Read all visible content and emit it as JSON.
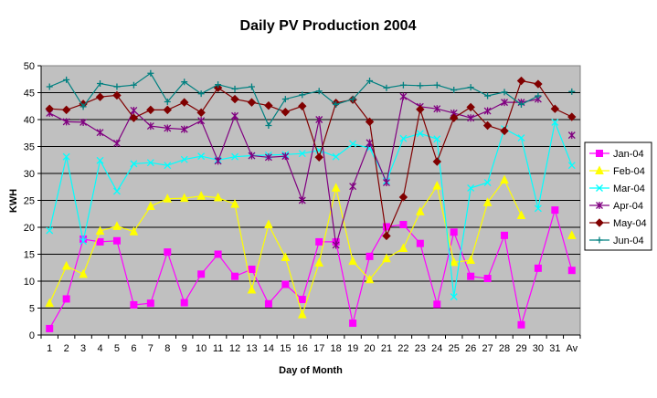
{
  "chart_data": {
    "type": "line",
    "title": "Daily PV Production 2004",
    "xlabel": "Day of Month",
    "ylabel": "KWH",
    "ylim": [
      0,
      50
    ],
    "yticks": [
      0,
      5,
      10,
      15,
      20,
      25,
      30,
      35,
      40,
      45,
      50
    ],
    "grid": true,
    "legend_position": "right",
    "plot_background": "#c0c0c0",
    "categories": [
      "1",
      "2",
      "3",
      "4",
      "5",
      "6",
      "7",
      "8",
      "9",
      "10",
      "11",
      "12",
      "13",
      "14",
      "15",
      "16",
      "17",
      "18",
      "19",
      "20",
      "21",
      "22",
      "23",
      "24",
      "25",
      "26",
      "27",
      "28",
      "29",
      "30",
      "31",
      "Av"
    ],
    "series": [
      {
        "name": "Jan-04",
        "color": "#ff00ff",
        "marker": "square",
        "values": [
          1.2,
          6.7,
          17.8,
          17.3,
          17.5,
          5.6,
          5.9,
          15.4,
          6,
          11.3,
          15,
          10.9,
          12.2,
          5.8,
          9.4,
          6.6,
          17.3,
          17.3,
          2.2,
          14.6,
          20.1,
          20.5,
          17,
          5.7,
          19.1,
          10.9,
          10.5,
          18.5,
          1.9,
          12.4,
          23.2,
          12
        ]
      },
      {
        "name": "Feb-04",
        "color": "#ffff00",
        "marker": "triangle",
        "values": [
          5.9,
          12.8,
          11.3,
          19.3,
          20.2,
          19.2,
          23.9,
          25.3,
          25.4,
          25.8,
          25.5,
          24.3,
          8.4,
          20.5,
          14.4,
          3.8,
          13.4,
          27.3,
          13.7,
          10.3,
          14.2,
          16.1,
          22.9,
          27.7,
          13.5,
          13.9,
          24.6,
          28.8,
          22.2,
          null,
          null,
          18.5
        ]
      },
      {
        "name": "Mar-04",
        "color": "#00ffff",
        "marker": "x",
        "values": [
          19.4,
          33.1,
          17.4,
          32.4,
          26.7,
          31.8,
          32,
          31.5,
          32.6,
          33.2,
          32.5,
          33.1,
          33.3,
          33.4,
          33.5,
          33.7,
          34.3,
          33.1,
          35.5,
          34.7,
          28.6,
          36.5,
          37.4,
          36.4,
          7.1,
          27.3,
          28.3,
          38.3,
          36.6,
          23.5,
          39.5,
          31.5
        ]
      },
      {
        "name": "Apr-04",
        "color": "#800080",
        "marker": "star",
        "values": [
          41.2,
          39.6,
          39.5,
          37.6,
          35.6,
          41.7,
          38.8,
          38.4,
          38.2,
          39.8,
          32.3,
          40.7,
          33.3,
          33,
          33.2,
          25,
          40,
          16.7,
          27.6,
          35.7,
          28.3,
          44.3,
          42.4,
          42,
          41.2,
          40.3,
          41.6,
          43.2,
          43.2,
          43.8,
          null,
          37.1
        ]
      },
      {
        "name": "May-04",
        "color": "#800000",
        "marker": "diamond",
        "values": [
          42,
          41.8,
          42.9,
          44.2,
          44.5,
          40.3,
          41.8,
          41.8,
          43.2,
          41.3,
          45.9,
          43.8,
          43.2,
          42.6,
          41.4,
          42.5,
          33,
          43.1,
          43.7,
          39.6,
          18.4,
          25.6,
          41.9,
          32.2,
          40.3,
          42.3,
          38.9,
          37.9,
          47.2,
          46.6,
          42,
          40.5
        ]
      },
      {
        "name": "Jun-04",
        "color": "#008080",
        "marker": "plus",
        "values": [
          46.1,
          47.4,
          42.4,
          46.7,
          46.1,
          46.4,
          48.6,
          43.3,
          47,
          44.8,
          46.5,
          45.7,
          46.1,
          38.9,
          43.8,
          44.6,
          45.3,
          42.8,
          43.8,
          47.2,
          45.9,
          46.4,
          46.3,
          46.4,
          45.5,
          46,
          44.4,
          45.1,
          42.8,
          44.4,
          null,
          45.2
        ]
      }
    ]
  }
}
